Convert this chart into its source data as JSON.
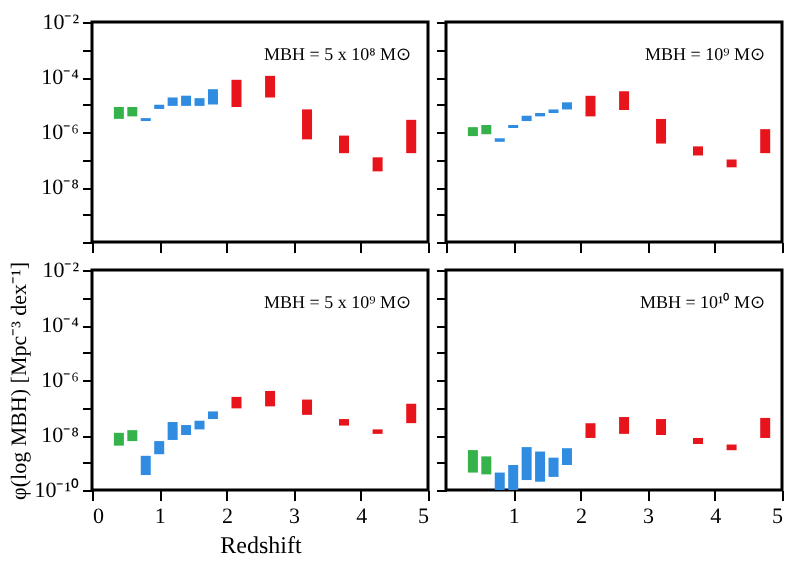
{
  "chart_data": [
    {
      "type": "bar",
      "annotations": [
        "MBH = 5 x 10⁸ M⊙"
      ],
      "xlim": [
        0,
        5
      ],
      "xticks": [
        0,
        1,
        2,
        3,
        4,
        5
      ],
      "ylim": [
        1e-10,
        0.01
      ],
      "log": true,
      "tick_labels": "y",
      "yticks": [
        {
          "value": 1e-10,
          "label": null
        },
        {
          "value": 1e-09,
          "label": null
        },
        {
          "value": 1e-08,
          "label": "10⁻⁸"
        },
        {
          "value": 1e-07,
          "label": null
        },
        {
          "value": 1e-06,
          "label": "10⁻⁶"
        },
        {
          "value": 1e-05,
          "label": null
        },
        {
          "value": 0.0001,
          "label": "10⁻⁴"
        },
        {
          "value": 0.001,
          "label": null
        },
        {
          "value": 0.01,
          "label": "10⁻²"
        }
      ],
      "series": [
        {
          "color": "#35b34a",
          "x": [
            0.4,
            0.6
          ],
          "base": [
            3e-06,
            3.7e-06
          ],
          "values": [
            5.1e-06,
            4.4e-06
          ]
        },
        {
          "color": "#2f8ce0",
          "x": [
            0.8,
            1.0,
            1.2,
            1.4,
            1.6,
            1.8
          ],
          "base": [
            2.5e-06,
            6.9e-06,
            8.9e-06,
            8.9e-06,
            8.9e-06,
            1e-05
          ],
          "values": [
            7e-07,
            2.9e-06,
            9.1e-06,
            1.2e-05,
            8.1e-06,
            2.6e-05
          ]
        },
        {
          "color": "#e8141c",
          "x": [
            2.15,
            2.65,
            3.2,
            3.75,
            4.25,
            4.75
          ],
          "base": [
            8.1e-06,
            1.8e-05,
            5.4e-07,
            1.7e-07,
            3.7e-08,
            1.7e-07
          ],
          "values": [
            7.1e-05,
            9.2e-05,
            6.1e-06,
            5.7e-07,
            8.3e-08,
            2.6e-06
          ]
        }
      ]
    },
    {
      "type": "bar",
      "annotations": [
        "MBH = 10⁹ M⊙"
      ],
      "xlim": [
        0,
        5
      ],
      "xticks": [
        0,
        1,
        2,
        3,
        4,
        5
      ],
      "ylim": [
        1e-10,
        0.01
      ],
      "log": true,
      "tick_labels": false,
      "yticks": [
        1e-10,
        1e-09,
        1e-08,
        1e-07,
        1e-06,
        1e-05,
        0.0001,
        0.001,
        0.01
      ],
      "series": [
        {
          "color": "#35b34a",
          "x": [
            0.4,
            0.6
          ],
          "base": [
            7.1e-07,
            8.3e-07
          ],
          "values": [
            7.9e-07,
            9.7e-07
          ]
        },
        {
          "color": "#2f8ce0",
          "x": [
            0.8,
            1.0,
            1.2,
            1.4,
            1.6,
            1.8
          ],
          "base": [
            4.4e-07,
            1.4e-06,
            2.5e-06,
            3.7e-06,
            4.9e-06,
            6.6e-06
          ],
          "values": [
            1.5e-07,
            4e-07,
            1.4e-06,
            1.2e-06,
            1.7e-06,
            5.4e-06
          ]
        },
        {
          "color": "#e8141c",
          "x": [
            2.15,
            2.65,
            3.2,
            3.75,
            4.25,
            4.75
          ],
          "base": [
            3.7e-06,
            6.3e-06,
            3.8e-07,
            1.4e-07,
            5.2e-08,
            1.7e-07
          ],
          "values": [
            1.7e-05,
            2.4e-05,
            2.6e-06,
            1.6e-07,
            4.8e-08,
            1.1e-06
          ]
        }
      ]
    },
    {
      "type": "bar",
      "annotations": [
        "MBH = 5 x 10⁹ M⊙"
      ],
      "xlabel": "Redshift",
      "ylabel": "φ(log MBH) [Mpc⁻³ dex⁻¹]",
      "xlim": [
        0,
        5
      ],
      "xticks": [
        0,
        1,
        2,
        3,
        4,
        5
      ],
      "ylim": [
        1e-10,
        0.01
      ],
      "log": true,
      "yticks": [
        {
          "value": 1e-10,
          "label": "10⁻¹⁰"
        },
        {
          "value": 1e-09,
          "label": null
        },
        {
          "value": 1e-08,
          "label": "10⁻⁸"
        },
        {
          "value": 1e-07,
          "label": null
        },
        {
          "value": 1e-06,
          "label": "10⁻⁶"
        },
        {
          "value": 1e-05,
          "label": null
        },
        {
          "value": 0.0001,
          "label": "10⁻⁴"
        },
        {
          "value": 0.001,
          "label": null
        },
        {
          "value": 0.01,
          "label": "10⁻²"
        }
      ],
      "series": [
        {
          "color": "#35b34a",
          "x": [
            0.4,
            0.6
          ],
          "base": [
            4.1e-09,
            6e-09
          ],
          "values": [
            7.9e-09,
            9e-09
          ]
        },
        {
          "color": "#2f8ce0",
          "x": [
            0.8,
            1.0,
            1.2,
            1.4,
            1.6,
            1.8
          ],
          "base": [
            3.5e-10,
            2e-09,
            6.6e-09,
            1e-08,
            1.6e-08,
            3.8e-08
          ],
          "values": [
            1.4e-09,
            4e-09,
            2.3e-08,
            1.3e-08,
            1.7e-08,
            3.4e-08
          ]
        },
        {
          "color": "#e8141c",
          "x": [
            2.15,
            2.65,
            3.2,
            3.75,
            4.25,
            4.75
          ],
          "base": [
            9.3e-08,
            1.1e-07,
            5.4e-08,
            2.2e-08,
            1.1e-08,
            2.7e-08
          ],
          "values": [
            1.5e-07,
            2.9e-07,
            1.4e-07,
            1.6e-08,
            5e-09,
            1.1e-07
          ]
        }
      ]
    },
    {
      "type": "bar",
      "annotations": [
        "MBH = 10¹⁰ M⊙"
      ],
      "xlim": [
        0,
        5
      ],
      "ylim": [
        1e-10,
        0.01
      ],
      "log": true,
      "tick_labels": "x",
      "xticks": [
        1,
        2,
        3,
        4,
        5
      ],
      "yticks": [
        1e-10,
        1e-09,
        1e-08,
        1e-07,
        1e-06,
        1e-05,
        0.0001,
        0.001,
        0.01
      ],
      "series": [
        {
          "color": "#35b34a",
          "x": [
            0.4,
            0.6
          ],
          "base": [
            4.3e-10,
            3.7e-10
          ],
          "values": [
            2.4e-09,
            1.3e-09
          ]
        },
        {
          "color": "#2f8ce0",
          "x": [
            0.8,
            1.0,
            1.2,
            1.4,
            1.6,
            1.8
          ],
          "base": [
            1e-10,
            1e-10,
            2.3e-10,
            2e-10,
            3e-10,
            8.1e-10
          ],
          "values": [
            3.3e-10,
            7.1e-10,
            3.4e-09,
            2.3e-09,
            1.2e-09,
            2.5e-09
          ]
        },
        {
          "color": "#e8141c",
          "x": [
            2.15,
            2.65,
            3.2,
            3.75,
            4.25,
            4.75
          ],
          "base": [
            7.8e-09,
            1.1e-08,
            1e-08,
            4.7e-09,
            2.8e-09,
            7.8e-09
          ],
          "values": [
            1.9e-08,
            3.4e-08,
            2.8e-08,
            3.1e-09,
            1.7e-09,
            3.4e-08
          ]
        }
      ]
    }
  ]
}
